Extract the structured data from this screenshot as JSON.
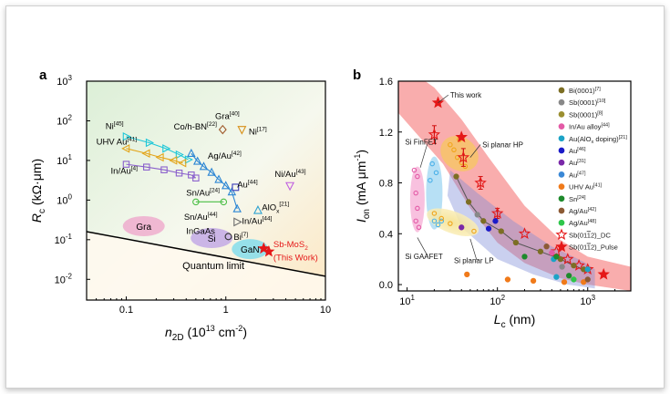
{
  "chart_data": [
    {
      "panel_label": "a",
      "type": "scatter",
      "xlabel_main": "n",
      "xlabel_sub": "2D",
      "xlabel_unit_pre": " (10",
      "xlabel_unit_sup": "13",
      "xlabel_unit_post": " cm",
      "xlabel_unit_sup2": "-2",
      "xlabel_unit_end": ")",
      "ylabel_main": "R",
      "ylabel_sub": "c",
      "ylabel_unit": " (kΩ·μm)",
      "xscale": "log",
      "yscale": "log",
      "xlim": [
        0.04,
        10
      ],
      "ylim": [
        0.003,
        1000
      ],
      "xticks": [
        {
          "v": 0.1,
          "label": "0.1"
        },
        {
          "v": 1,
          "label": "1"
        },
        {
          "v": 10,
          "label": "10"
        }
      ],
      "yticks": [
        {
          "v": 0.01,
          "base": "10",
          "exp": "-2"
        },
        {
          "v": 0.1,
          "base": "10",
          "exp": "-1"
        },
        {
          "v": 1,
          "base": "10",
          "exp": "0"
        },
        {
          "v": 10,
          "base": "10",
          "exp": "1"
        },
        {
          "v": 100,
          "base": "10",
          "exp": "2"
        },
        {
          "v": 1000,
          "base": "10",
          "exp": "3"
        }
      ],
      "quantum_limit_label": "Quantum limit",
      "quantum_limit": [
        [
          0.04,
          0.16
        ],
        [
          10,
          0.012
        ]
      ],
      "regions": [
        {
          "label": "Gra",
          "x": 0.15,
          "y": 0.22,
          "color": "#ee9dc8"
        },
        {
          "label": "Si",
          "x": 0.72,
          "y": 0.11,
          "color": "#b89ae6"
        },
        {
          "label": "GaN",
          "x": 1.75,
          "y": 0.058,
          "color": "#6cd8ee"
        }
      ],
      "text_labels": [
        {
          "text": "InGaAs",
          "x": 0.4,
          "y": 0.14
        },
        {
          "text": "Gra",
          "sup": "[40]",
          "x": 0.78,
          "y": 110
        },
        {
          "text": "Ni",
          "sup": "[17]",
          "x": 1.7,
          "y": 45
        },
        {
          "text": "Au",
          "sup": "[44]",
          "x": 1.3,
          "y": 2.1
        },
        {
          "text": "Ni/Au",
          "sup": "[43]",
          "x": 3.1,
          "y": 3.8
        },
        {
          "text": "AlO",
          "sub": "x",
          "sup": "[21]",
          "x": 2.3,
          "y": 0.55
        },
        {
          "text": "In/Au",
          "sup": "[44]",
          "x": 1.45,
          "y": 0.25
        },
        {
          "text": "Bi",
          "sup": "[7]",
          "x": 1.2,
          "y": 0.1
        },
        {
          "text": "Sb-MoS",
          "sub": "2",
          "x": 3.0,
          "y": 0.065,
          "color": "#e51818"
        },
        {
          "text": "(This Work)",
          "x": 3.0,
          "y": 0.03,
          "color": "#e51818"
        }
      ],
      "series": [
        {
          "name": "Ni",
          "sup": "[45]",
          "color": "#1ec7d8",
          "marker": "tri-right",
          "lx": 0.062,
          "ly": 62,
          "points": [
            [
              0.1,
              40
            ],
            [
              0.17,
              28
            ],
            [
              0.25,
              20
            ],
            [
              0.34,
              14
            ],
            [
              0.42,
              10.5
            ]
          ]
        },
        {
          "name": "UHV Au",
          "sup": "[41]",
          "color": "#e3a51a",
          "marker": "tri-left",
          "lx": 0.05,
          "ly": 25,
          "points": [
            [
              0.1,
              20
            ],
            [
              0.16,
              15
            ],
            [
              0.22,
              12
            ],
            [
              0.3,
              10
            ],
            [
              0.37,
              8.6
            ]
          ]
        },
        {
          "name": "In/Au",
          "sup": "[4]",
          "color": "#8a60cc",
          "marker": "square",
          "lx": 0.07,
          "ly": 4.6,
          "points": [
            [
              0.1,
              8
            ],
            [
              0.16,
              6.8
            ],
            [
              0.24,
              5.8
            ],
            [
              0.34,
              4.8
            ],
            [
              0.45,
              4.3
            ],
            [
              0.5,
              3.6
            ]
          ]
        },
        {
          "name": "Co/h-BN",
          "sup": "[22]",
          "color": "#2c86d4",
          "marker": "tri-up",
          "lx": 0.3,
          "ly": 60,
          "points": [
            [
              0.45,
              15
            ],
            [
              0.52,
              9.5
            ],
            [
              0.6,
              7
            ],
            [
              0.72,
              5
            ],
            [
              0.85,
              3.3
            ],
            [
              1.0,
              2.3
            ],
            [
              1.15,
              1.6
            ],
            [
              1.3,
              0.6
            ]
          ]
        },
        {
          "name": "Ag/Au",
          "sup": "[42]",
          "color": "#e88fc0",
          "marker": "diamond",
          "lx": 0.66,
          "ly": 11,
          "points": []
        },
        {
          "name": "Sn/Au",
          "sup": "[24]",
          "color": "#4bbf46",
          "marker": "circle",
          "lx": 0.4,
          "ly": 1.3,
          "points": [
            [
              0.5,
              0.9
            ],
            [
              0.95,
              0.9
            ]
          ]
        },
        {
          "name": "Sn/Au",
          "sup": "[44]",
          "color": "#555555",
          "marker": "circle",
          "lx": 0.38,
          "ly": 0.32,
          "points": []
        }
      ],
      "singles": [
        {
          "x": 0.93,
          "y": 60,
          "color": "#a05a2c",
          "marker": "diamond"
        },
        {
          "x": 1.45,
          "y": 60,
          "color": "#d89018",
          "marker": "tri-down"
        },
        {
          "x": 1.25,
          "y": 2.1,
          "color": "#3a3ab8",
          "marker": "square"
        },
        {
          "x": 4.4,
          "y": 2.3,
          "color": "#c060e0",
          "marker": "tri-down"
        },
        {
          "x": 2.1,
          "y": 0.55,
          "color": "#2ea2d0",
          "marker": "tri-up"
        },
        {
          "x": 1.3,
          "y": 0.28,
          "color": "#6c6c6c",
          "marker": "tri-right"
        },
        {
          "x": 1.06,
          "y": 0.12,
          "color": "#333333",
          "marker": "circle"
        },
        {
          "x": 2.4,
          "y": 0.06,
          "color": "#e51818",
          "marker": "star"
        },
        {
          "x": 2.7,
          "y": 0.05,
          "color": "#e51818",
          "marker": "star"
        }
      ]
    },
    {
      "panel_label": "b",
      "type": "scatter",
      "xlabel_main": "L",
      "xlabel_sub": "c",
      "xlabel_unit": " (nm)",
      "ylabel_main": "I",
      "ylabel_sub": "on",
      "ylabel_unit_pre": " (mA μm",
      "ylabel_unit_sup": "-1",
      "ylabel_unit_end": ")",
      "xscale": "log",
      "yscale": "linear",
      "xlim": [
        8,
        3000
      ],
      "ylim": [
        -0.05,
        1.6
      ],
      "xticks": [
        {
          "v": 10,
          "base": "10",
          "exp": "1"
        },
        {
          "v": 100,
          "base": "10",
          "exp": "2"
        },
        {
          "v": 1000,
          "base": "10",
          "exp": "3"
        }
      ],
      "yticks": [
        {
          "v": 0.0,
          "label": "0.0"
        },
        {
          "v": 0.4,
          "label": "0.4"
        },
        {
          "v": 0.8,
          "label": "0.8"
        },
        {
          "v": 1.2,
          "label": "1.2"
        },
        {
          "v": 1.6,
          "label": "1.6"
        }
      ],
      "annotations": [
        {
          "text": "This work",
          "x": 22,
          "y": 1.43,
          "tx": 30,
          "ty": 1.47
        },
        {
          "text": "Si FinFET",
          "x": 14,
          "y": 0.92,
          "tx": 9.5,
          "ty": 1.1
        },
        {
          "text": "Si planar HP",
          "x": 50,
          "y": 1.0,
          "tx": 68,
          "ty": 1.08
        },
        {
          "text": "Si GAAFET",
          "x": 13,
          "y": 0.37,
          "tx": 9.5,
          "ty": 0.2
        },
        {
          "text": "Si planar LP",
          "x": 50,
          "y": 0.36,
          "tx": 33,
          "ty": 0.17
        }
      ],
      "legend": [
        {
          "label": "Bi(0001)",
          "sup": "[7]",
          "color": "#7c6e24",
          "marker": "circle"
        },
        {
          "label": "Sb(0001)",
          "sup": "[10]",
          "color": "#888888",
          "marker": "circle"
        },
        {
          "label": "Sb(0001)",
          "sup": "[8]",
          "color": "#9b8f30",
          "marker": "circle"
        },
        {
          "label": "In/Au alloy",
          "sup": "[44]",
          "color": "#e35aa6",
          "marker": "circle"
        },
        {
          "label": "Au(AlO",
          "sub": "x",
          "tail": " doping)",
          "sup": "[21]",
          "color": "#1ca3c6",
          "marker": "circle"
        },
        {
          "label": "Au",
          "sup": "[46]",
          "color": "#1b1bc8",
          "marker": "circle"
        },
        {
          "label": "Au",
          "sup": "[31]",
          "color": "#7a28a8",
          "marker": "circle"
        },
        {
          "label": "Au",
          "sup": "[47]",
          "color": "#3a88d6",
          "marker": "circle"
        },
        {
          "label": "UHV Au",
          "sup": "[41]",
          "color": "#f07a1a",
          "marker": "circle"
        },
        {
          "label": "Sn",
          "sup": "[24]",
          "color": "#1e8a2c",
          "marker": "circle"
        },
        {
          "label": "Ag/Au",
          "sup": "[42]",
          "color": "#8c5a34",
          "marker": "circle"
        },
        {
          "label": "Ag/Au",
          "sup": "[48]",
          "color": "#2ec64a",
          "marker": "circle"
        },
        {
          "label": "Sb(01",
          "bar": "1",
          "tail": "2)_DC",
          "color": "#e51818",
          "marker": "star-open"
        },
        {
          "label": "Sb(01",
          "bar": "1",
          "tail": "2)_Pulse",
          "color": "#e51818",
          "marker": "star"
        }
      ],
      "points": [
        {
          "x": 22,
          "y": 1.43,
          "color": "#e51818",
          "marker": "star"
        },
        {
          "x": 20,
          "y": 1.18,
          "color": "#e51818",
          "marker": "star-open"
        },
        {
          "x": 40,
          "y": 1.16,
          "color": "#e51818",
          "marker": "star"
        },
        {
          "x": 42,
          "y": 1.0,
          "color": "#e51818",
          "marker": "star-open"
        },
        {
          "x": 65,
          "y": 0.8,
          "color": "#e51818",
          "marker": "star-open"
        },
        {
          "x": 100,
          "y": 0.56,
          "color": "#e51818",
          "marker": "star-open"
        },
        {
          "x": 200,
          "y": 0.4,
          "color": "#e51818",
          "marker": "star-open"
        },
        {
          "x": 450,
          "y": 0.26,
          "color": "#e51818",
          "marker": "star-open"
        },
        {
          "x": 600,
          "y": 0.2,
          "color": "#e51818",
          "marker": "star-open"
        },
        {
          "x": 800,
          "y": 0.15,
          "color": "#e51818",
          "marker": "star-open"
        },
        {
          "x": 1000,
          "y": 0.12,
          "color": "#e51818",
          "marker": "star-open"
        },
        {
          "x": 1500,
          "y": 0.08,
          "color": "#e51818",
          "marker": "star"
        },
        {
          "x": 35,
          "y": 0.85,
          "color": "#7c6e24",
          "marker": "circle"
        },
        {
          "x": 48,
          "y": 0.65,
          "color": "#7c6e24",
          "marker": "circle"
        },
        {
          "x": 70,
          "y": 0.5,
          "color": "#7c6e24",
          "marker": "circle"
        },
        {
          "x": 110,
          "y": 0.42,
          "color": "#7c6e24",
          "marker": "circle"
        },
        {
          "x": 160,
          "y": 0.33,
          "color": "#7c6e24",
          "marker": "circle"
        },
        {
          "x": 300,
          "y": 0.26,
          "color": "#7c6e24",
          "marker": "circle"
        },
        {
          "x": 500,
          "y": 0.2,
          "color": "#7c6e24",
          "marker": "circle"
        },
        {
          "x": 700,
          "y": 0.15,
          "color": "#7c6e24",
          "marker": "circle"
        },
        {
          "x": 900,
          "y": 0.12,
          "color": "#7c6e24",
          "marker": "circle"
        },
        {
          "x": 60,
          "y": 0.55,
          "color": "#888888",
          "marker": "circle"
        },
        {
          "x": 520,
          "y": 0.14,
          "color": "#888888",
          "marker": "circle"
        },
        {
          "x": 40,
          "y": 0.45,
          "color": "#7a28a8",
          "marker": "circle"
        },
        {
          "x": 80,
          "y": 0.44,
          "color": "#1b1bc8",
          "marker": "circle"
        },
        {
          "x": 95,
          "y": 0.5,
          "color": "#1b1bc8",
          "marker": "circle"
        },
        {
          "x": 420,
          "y": 0.2,
          "color": "#1ca3c6",
          "marker": "circle"
        },
        {
          "x": 450,
          "y": 0.06,
          "color": "#1ca3c6",
          "marker": "circle"
        },
        {
          "x": 1000,
          "y": 0.12,
          "color": "#1ca3c6",
          "marker": "circle"
        },
        {
          "x": 400,
          "y": 0.25,
          "color": "#e35aa6",
          "marker": "circle"
        },
        {
          "x": 46,
          "y": 0.08,
          "color": "#f07a1a",
          "marker": "circle"
        },
        {
          "x": 130,
          "y": 0.04,
          "color": "#f07a1a",
          "marker": "circle"
        },
        {
          "x": 250,
          "y": 0.03,
          "color": "#f07a1a",
          "marker": "circle"
        },
        {
          "x": 550,
          "y": 0.02,
          "color": "#f07a1a",
          "marker": "circle"
        },
        {
          "x": 900,
          "y": 0.02,
          "color": "#f07a1a",
          "marker": "circle"
        },
        {
          "x": 200,
          "y": 0.22,
          "color": "#1e8a2c",
          "marker": "circle"
        },
        {
          "x": 450,
          "y": 0.22,
          "color": "#1e8a2c",
          "marker": "circle"
        },
        {
          "x": 620,
          "y": 0.07,
          "color": "#1e8a2c",
          "marker": "circle"
        },
        {
          "x": 700,
          "y": 0.04,
          "color": "#2ec64a",
          "marker": "circle"
        },
        {
          "x": 350,
          "y": 0.3,
          "color": "#8c5a34",
          "marker": "circle"
        },
        {
          "x": 1000,
          "y": 0.04,
          "color": "#8c5a34",
          "marker": "circle"
        }
      ],
      "benchmarks": [
        {
          "name": "Si FinFET",
          "color": "#4ab0e8",
          "open": [
            [
              19,
              0.95
            ],
            [
              21,
              0.88
            ],
            [
              18,
              0.82
            ],
            [
              20,
              0.5
            ],
            [
              22,
              0.47
            ],
            [
              24,
              0.5
            ]
          ]
        },
        {
          "name": "Si planar HP",
          "color": "#f0a51a",
          "open": [
            [
              30,
              1.1
            ],
            [
              33,
              1.06
            ],
            [
              36,
              1.0
            ],
            [
              40,
              0.96
            ],
            [
              44,
              0.93
            ],
            [
              38,
              1.14
            ]
          ]
        },
        {
          "name": "Si GAAFET",
          "color": "#e35aa6",
          "open": [
            [
              12,
              0.9
            ],
            [
              13,
              0.85
            ],
            [
              12.5,
              0.72
            ],
            [
              13,
              0.6
            ],
            [
              12.5,
              0.5
            ],
            [
              13.5,
              0.45
            ]
          ]
        },
        {
          "name": "Si planar LP",
          "color": "#f0a51a",
          "open": [
            [
              20,
              0.56
            ],
            [
              24,
              0.52
            ],
            [
              30,
              0.48
            ],
            [
              40,
              0.45
            ],
            [
              55,
              0.42
            ]
          ]
        }
      ]
    }
  ]
}
